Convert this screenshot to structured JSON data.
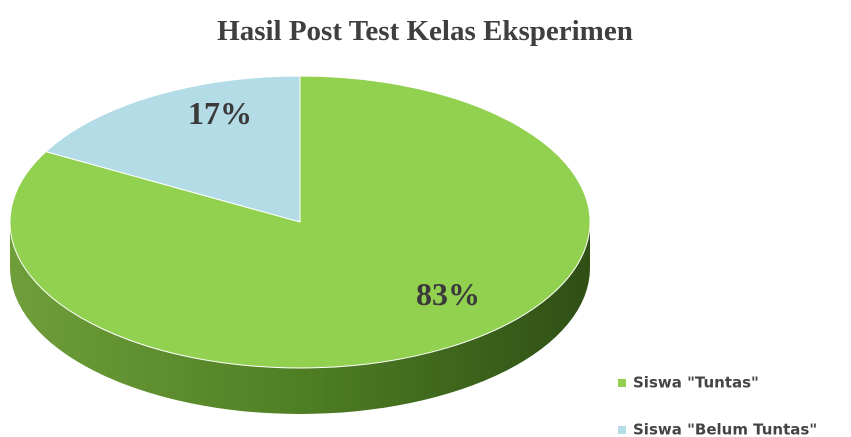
{
  "chart_data": {
    "type": "pie",
    "title": "Hasil Post Test Kelas Eksperimen",
    "categories": [
      "Siswa \"Tuntas\"",
      "Siswa \"Belum Tuntas\""
    ],
    "values": [
      83,
      17
    ],
    "value_labels": [
      "83%",
      "17%"
    ],
    "colors": [
      "#92d050",
      "#b4dce6"
    ],
    "legend": "bottom-right"
  }
}
